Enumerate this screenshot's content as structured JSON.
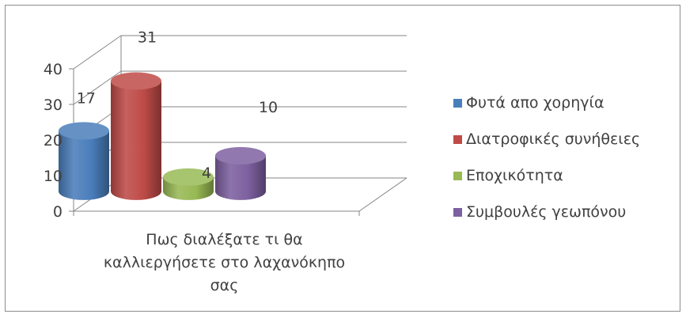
{
  "chart_data": {
    "type": "bar",
    "style": "3d-cylinder",
    "title": "",
    "xlabel": "",
    "ylabel": "",
    "category_label_lines": [
      "Πως διαλέξατε τι θα",
      "καλλιεργήσετε στο λαχανόκηπο",
      "σας"
    ],
    "ylim": [
      0,
      40
    ],
    "yticks": [
      0,
      10,
      20,
      30,
      40
    ],
    "grid": true,
    "legend_position": "right",
    "series": [
      {
        "name": "Φυτά απο χορηγία",
        "value": 17,
        "label": "17",
        "color": "#4a7ebb"
      },
      {
        "name": "Διατροφικές συνήθειες",
        "value": 31,
        "label": "31",
        "color": "#be4b48"
      },
      {
        "name": "Εποχικότητα",
        "value": 4,
        "label": "4",
        "color": "#98b954"
      },
      {
        "name": "Συμβουλές γεωπόνου",
        "value": 10,
        "label": "10",
        "color": "#7d60a0"
      }
    ]
  }
}
